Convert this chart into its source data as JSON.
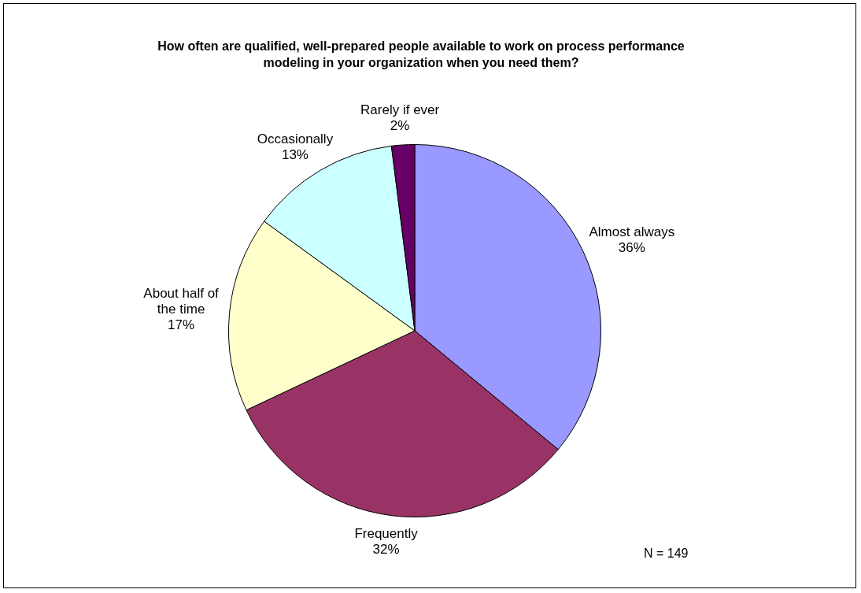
{
  "chart_data": {
    "type": "pie",
    "title": "How often are qualified, well-prepared people available to work on process performance modeling in your organization when you need them?",
    "categories": [
      "Almost always",
      "Frequently",
      "About half of the time",
      "Occasionally",
      "Rarely if ever"
    ],
    "values": [
      36,
      32,
      17,
      13,
      2
    ],
    "colors": [
      "#9999ff",
      "#993366",
      "#ffffcc",
      "#ccffff",
      "#660066"
    ],
    "value_labels": [
      "36%",
      "32%",
      "17%",
      "13%",
      "2%"
    ],
    "legend": false,
    "annotations": [
      "N = 149"
    ]
  }
}
